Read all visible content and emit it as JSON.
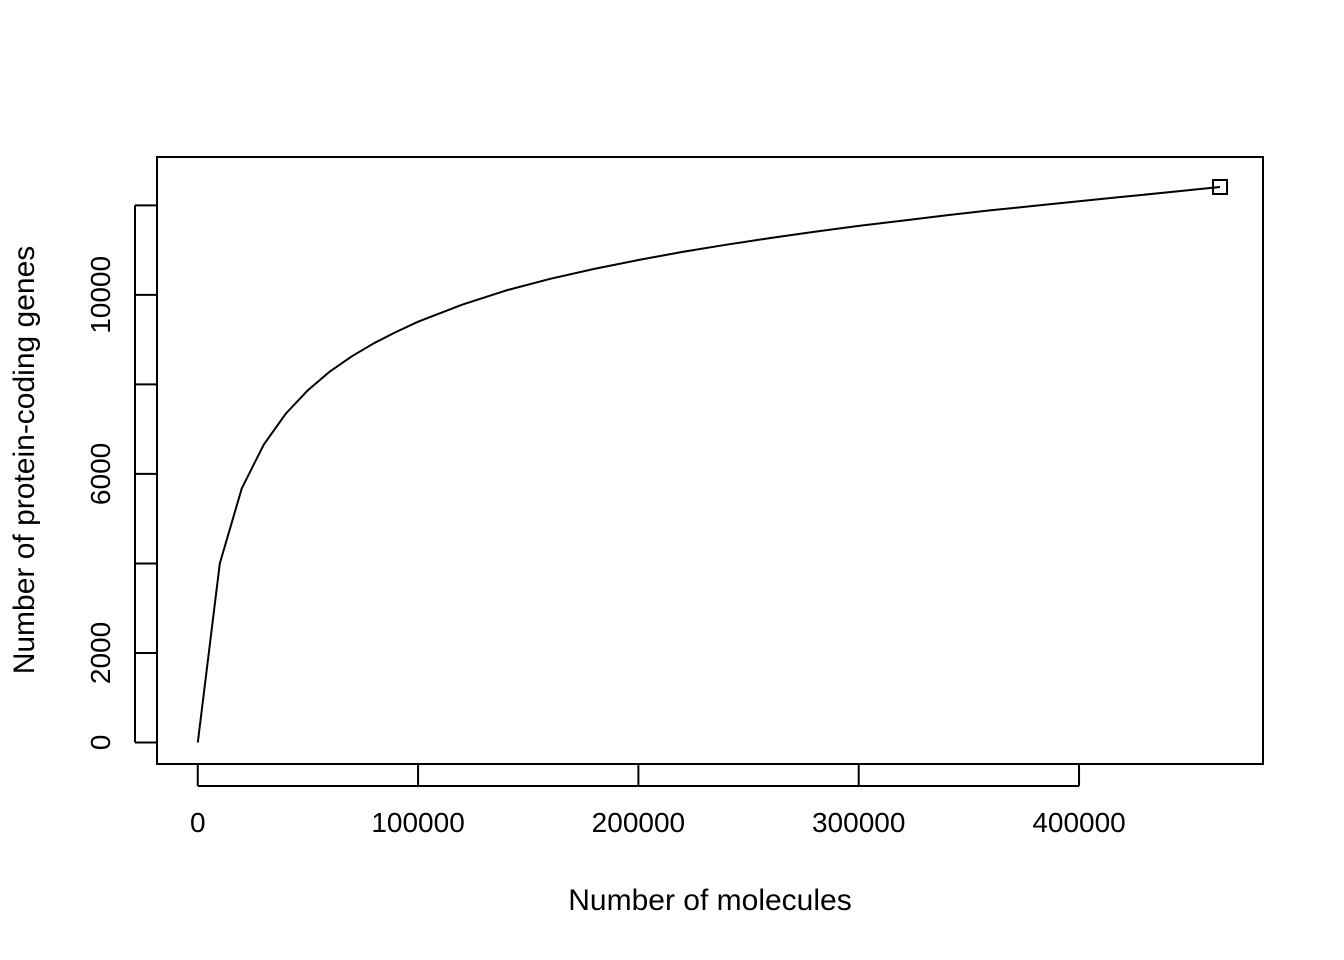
{
  "chart_data": {
    "type": "line",
    "title": "",
    "xlabel": "Number of molecules",
    "ylabel": "Number of protein-coding genes",
    "xlim": [
      -18500,
      483500
    ],
    "ylim": [
      -480,
      13080
    ],
    "xticks": [
      0,
      100000,
      200000,
      300000,
      400000
    ],
    "xtick_labels": [
      "0",
      "100000",
      "200000",
      "300000",
      "400000"
    ],
    "yticks": [
      0,
      2000,
      4000,
      6000,
      8000,
      10000,
      12000
    ],
    "ytick_labels": [
      "0",
      "2000",
      "",
      "6000",
      "",
      "10000",
      ""
    ],
    "grid": false,
    "legend": "none",
    "series": [
      {
        "x": [
          0,
          10000,
          20000,
          30000,
          40000,
          50000,
          60000,
          70000,
          80000,
          90000,
          100000,
          120000,
          140000,
          160000,
          180000,
          200000,
          220000,
          240000,
          260000,
          280000,
          300000,
          320000,
          340000,
          360000,
          380000,
          400000,
          420000,
          440000,
          460000,
          464000
        ],
        "y": [
          0,
          4000,
          5680,
          6660,
          7350,
          7870,
          8290,
          8630,
          8920,
          9170,
          9400,
          9780,
          10100,
          10360,
          10580,
          10780,
          10960,
          11120,
          11270,
          11410,
          11540,
          11660,
          11780,
          11890,
          11990,
          12090,
          12190,
          12290,
          12390,
          12410
        ],
        "color": "#000000"
      }
    ],
    "end_marker": {
      "x": 464000,
      "y": 12410,
      "shape": "square-open"
    }
  }
}
